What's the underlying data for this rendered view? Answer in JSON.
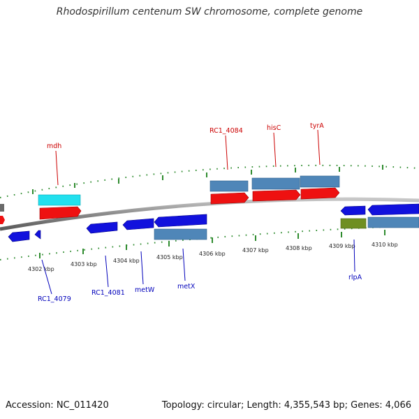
{
  "title": "Rhodospirillum centenum SW chromosome, complete genome",
  "footer": {
    "accession": "Accession: NC_011420",
    "summary": "Topology: circular; Length: 4,355,543 bp; Genes: 4,066"
  },
  "kbp_labels": [
    "4302 kbp",
    "4303 kbp",
    "4304 kbp",
    "4305 kbp",
    "4306 kbp",
    "4307 kbp",
    "4308 kbp",
    "4309 kbp",
    "4310 kbp"
  ],
  "gene_labels_top": [
    "mdh",
    "RC1_4084",
    "hisC",
    "tyrA"
  ],
  "gene_labels_bottom": [
    "RC1_4079",
    "RC1_4081",
    "metW",
    "metX",
    "rlpA"
  ],
  "colors": {
    "backbone": "#8a8a8a",
    "tick": "#2e8b2e",
    "cds_red": "#ee1111",
    "cds_blue": "#1111dd",
    "gene_steel": "#4f86b8",
    "gene_cyan": "#22e0ee",
    "gene_olive": "#6f8f22",
    "label_top": "#cc0000",
    "label_bottom": "#0000bb"
  }
}
